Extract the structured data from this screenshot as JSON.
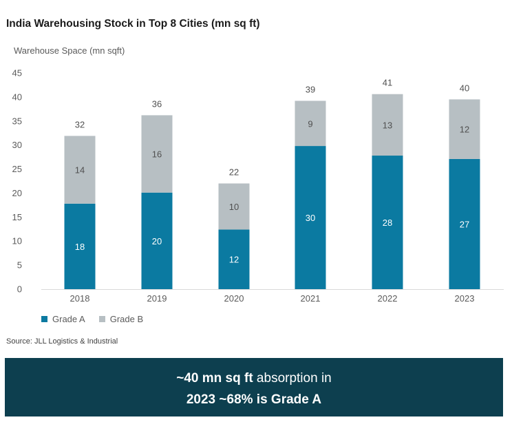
{
  "title": "India Warehousing Stock in Top 8 Cities (mn sq ft)",
  "source": "Source: JLL Logistics & Industrial",
  "banner": {
    "line1_bold": "~40 mn sq ft",
    "line1_rest": " absorption in",
    "line2": "2023 ~68% is Grade A"
  },
  "colors": {
    "grade_a": "#0b7aa1",
    "grade_b": "#b7bfc3"
  },
  "chart_data": {
    "type": "bar",
    "stacked": true,
    "ylabel": "Warehouse Space (mn sqft)",
    "ylim": [
      0,
      45
    ],
    "yticks": [
      0,
      5,
      10,
      15,
      20,
      25,
      30,
      35,
      40,
      45
    ],
    "grid": false,
    "legend_position": "bottom-left",
    "categories": [
      "2018",
      "2019",
      "2020",
      "2021",
      "2022",
      "2023"
    ],
    "series": [
      {
        "name": "Grade A",
        "values": [
          18,
          20,
          12,
          30,
          28,
          27
        ]
      },
      {
        "name": "Grade B",
        "values": [
          14,
          16,
          10,
          9,
          13,
          12
        ]
      }
    ],
    "totals": [
      32,
      36,
      22,
      39,
      41,
      40
    ],
    "drawn_values_a": [
      17.8,
      20.1,
      12.4,
      29.8,
      27.8,
      27.1
    ],
    "drawn_values_b": [
      14.1,
      16.1,
      9.6,
      9.4,
      12.8,
      12.4
    ]
  }
}
